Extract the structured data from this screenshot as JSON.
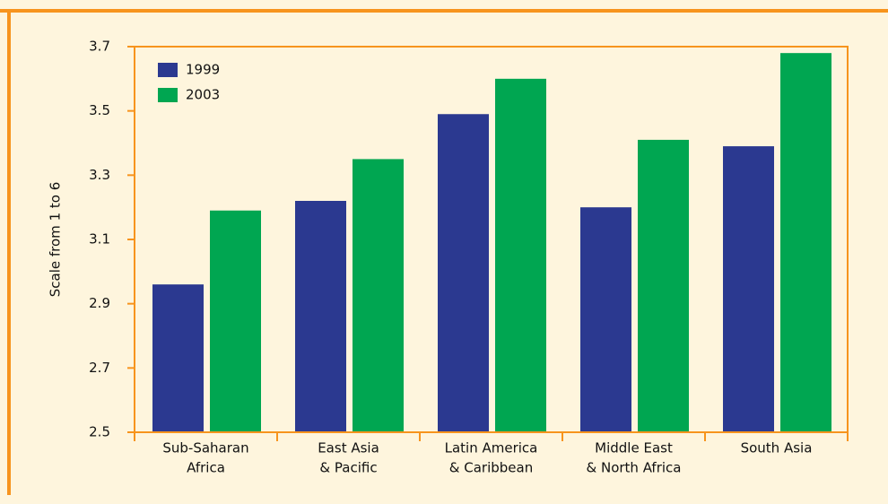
{
  "chart_data": {
    "type": "bar",
    "y_label": "Scale from 1 to 6",
    "categories": [
      [
        "Sub-Saharan",
        "Africa"
      ],
      [
        "East Asia",
        "& Pacific"
      ],
      [
        "Latin America",
        "& Caribbean"
      ],
      [
        "Middle East",
        "& North Africa"
      ],
      [
        "South Asia"
      ]
    ],
    "series": [
      {
        "name": "1999",
        "color": "#2b3990",
        "values": [
          2.96,
          3.22,
          3.49,
          3.2,
          3.39
        ]
      },
      {
        "name": "2003",
        "color": "#00a651",
        "values": [
          3.19,
          3.35,
          3.6,
          3.41,
          3.68
        ]
      }
    ],
    "ylim": [
      2.5,
      3.7
    ],
    "yticks": [
      {
        "value": 2.5,
        "label": "2.5"
      },
      {
        "value": 2.7,
        "label": "2.7"
      },
      {
        "value": 2.9,
        "label": "2.9"
      },
      {
        "value": 3.1,
        "label": "3.1"
      },
      {
        "value": 3.3,
        "label": "3.3"
      },
      {
        "value": 3.5,
        "label": "3.5"
      },
      {
        "value": 3.7,
        "label": "3.7"
      }
    ],
    "legend": "top-left"
  }
}
